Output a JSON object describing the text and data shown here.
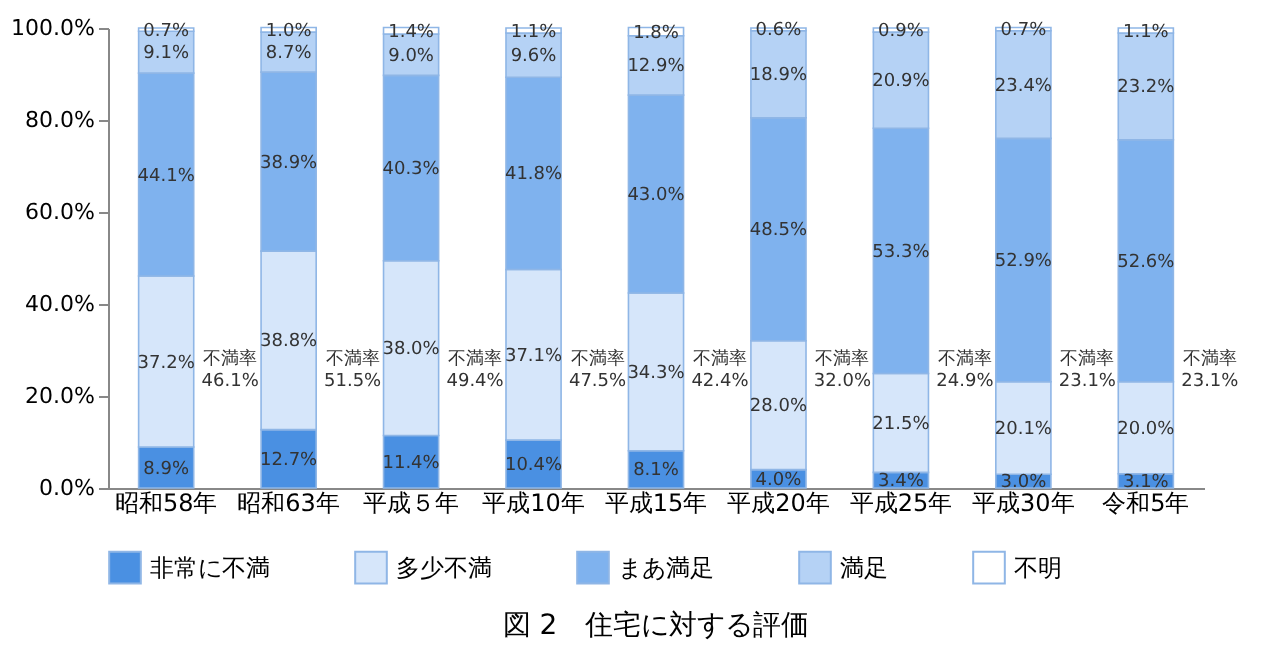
{
  "chart_data": {
    "type": "bar",
    "stacked": true,
    "title": "図 2　住宅に対する評価",
    "categories": [
      "昭和58年",
      "昭和63年",
      "平成５年",
      "平成10年",
      "平成15年",
      "平成20年",
      "平成25年",
      "平成30年",
      "令和5年"
    ],
    "series": [
      {
        "name": "非常に不満",
        "color": "#4a90e2",
        "values": [
          8.9,
          12.7,
          11.4,
          10.4,
          8.1,
          4.0,
          3.4,
          3.0,
          3.1
        ],
        "value_labels": [
          "8.9%",
          "12.7%",
          "11.4%",
          "10.4%",
          "8.1%",
          "4.0%",
          "3.4%",
          "3.0%",
          "3.1%"
        ]
      },
      {
        "name": "多少不満",
        "color": "#d6e6fa",
        "values": [
          37.2,
          38.8,
          38.0,
          37.1,
          34.3,
          28.0,
          21.5,
          20.1,
          20.0
        ],
        "value_labels": [
          "37.2%",
          "38.8%",
          "38.0%",
          "37.1%",
          "34.3%",
          "28.0%",
          "21.5%",
          "20.1%",
          "20.0%"
        ]
      },
      {
        "name": "まあ満足",
        "color": "#7fb2ee",
        "values": [
          44.1,
          38.9,
          40.3,
          41.8,
          43.0,
          48.5,
          53.3,
          52.9,
          52.6
        ],
        "value_labels": [
          "44.1%",
          "38.9%",
          "40.3%",
          "41.8%",
          "43.0%",
          "48.5%",
          "53.3%",
          "52.9%",
          "52.6%"
        ]
      },
      {
        "name": "満足",
        "color": "#b5d2f5",
        "values": [
          9.1,
          8.7,
          9.0,
          9.6,
          12.9,
          18.9,
          20.9,
          23.4,
          23.2
        ],
        "value_labels": [
          "9.1%",
          "8.7%",
          "9.0%",
          "9.6%",
          "12.9%",
          "18.9%",
          "20.9%",
          "23.4%",
          "23.2%"
        ]
      },
      {
        "name": "不明",
        "color": "#ffffff",
        "values": [
          0.7,
          1.0,
          1.4,
          1.1,
          1.8,
          0.6,
          0.9,
          0.7,
          1.1
        ],
        "value_labels": [
          "0.7%",
          "1.0%",
          "1.4%",
          "1.1%",
          "1.8%",
          "0.6%",
          "0.9%",
          "0.7%",
          "1.1%"
        ]
      }
    ],
    "ylim": [
      0,
      100
    ],
    "yticks": [
      {
        "value": 0,
        "label": "0.0%"
      },
      {
        "value": 20,
        "label": "20.0%"
      },
      {
        "value": 40,
        "label": "40.0%"
      },
      {
        "value": 60,
        "label": "60.0%"
      },
      {
        "value": 80,
        "label": "80.0%"
      },
      {
        "value": 100,
        "label": "100.0%"
      }
    ],
    "grid": false,
    "legend": "bottom",
    "annotations": [
      "不満率\n46.1%",
      "不満率\n51.5%",
      "不満率\n49.4%",
      "不満率\n47.5%",
      "不満率\n42.4%",
      "不満率\n32.0%",
      "不満率\n24.9%",
      "不満率\n23.1%",
      "不満率\n23.1%"
    ]
  }
}
